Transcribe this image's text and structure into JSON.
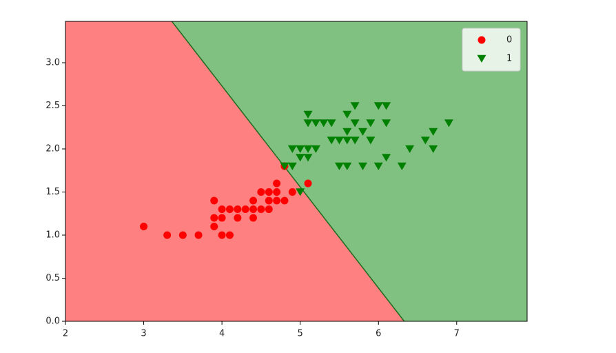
{
  "chart_data": {
    "type": "scatter",
    "xlim": [
      2,
      7.9
    ],
    "ylim": [
      0,
      3.48
    ],
    "xticks": [
      2,
      3,
      4,
      5,
      6,
      7
    ],
    "yticks": [
      {
        "value": 0,
        "label": "0.0"
      },
      {
        "value": 0.5,
        "label": "0.5"
      },
      {
        "value": 1,
        "label": "1.0"
      },
      {
        "value": 1.5,
        "label": "1.5"
      },
      {
        "value": 2,
        "label": "2.0"
      },
      {
        "value": 2.5,
        "label": "2.5"
      },
      {
        "value": 3,
        "label": "3.0"
      }
    ],
    "legend": "upper right",
    "regions": {
      "left_color": "#ff8080",
      "right_color": "#80c080",
      "boundary_color": "#1f6b1f"
    },
    "boundary": {
      "x": [
        3.36,
        6.33
      ],
      "y": [
        3.48,
        0
      ]
    },
    "series": [
      {
        "name": "0",
        "color": "#ff0000",
        "marker": "circle",
        "x": [
          3.0,
          3.3,
          3.5,
          3.7,
          3.9,
          3.9,
          3.9,
          4.0,
          4.0,
          4.0,
          4.1,
          4.1,
          4.2,
          4.2,
          4.3,
          4.4,
          4.4,
          4.4,
          4.5,
          4.5,
          4.6,
          4.6,
          4.6,
          4.7,
          4.7,
          4.7,
          4.8,
          4.8,
          4.9,
          5.1
        ],
        "values": [
          1.1,
          1.0,
          1.0,
          1.0,
          1.4,
          1.2,
          1.1,
          1.3,
          1.2,
          1.0,
          1.3,
          1.0,
          1.3,
          1.2,
          1.3,
          1.4,
          1.3,
          1.2,
          1.5,
          1.3,
          1.5,
          1.4,
          1.3,
          1.6,
          1.5,
          1.4,
          1.8,
          1.4,
          1.5,
          1.6
        ]
      },
      {
        "name": "1",
        "color": "#008000",
        "marker": "triangle-down",
        "x": [
          5.1,
          5.1,
          5.2,
          5.3,
          5.4,
          5.6,
          5.7,
          5.7,
          5.8,
          5.9,
          6.0,
          6.1,
          6.1,
          6.9,
          6.7,
          5.6,
          5.4,
          5.5,
          5.6,
          5.7,
          5.9,
          6.6,
          6.4,
          6.7,
          4.9,
          5.0,
          5.1,
          5.2,
          5.0,
          5.1,
          6.1,
          4.8,
          4.9,
          5.5,
          5.6,
          5.8,
          6.0,
          6.3,
          5.0
        ],
        "values": [
          2.4,
          2.3,
          2.3,
          2.3,
          2.3,
          2.4,
          2.5,
          2.3,
          2.2,
          2.3,
          2.5,
          2.5,
          2.3,
          2.3,
          2.2,
          2.2,
          2.1,
          2.1,
          2.1,
          2.1,
          2.1,
          2.1,
          2.0,
          2.0,
          2.0,
          2.0,
          2.0,
          2.0,
          1.9,
          1.9,
          1.9,
          1.8,
          1.8,
          1.8,
          1.8,
          1.8,
          1.8,
          1.8,
          1.5
        ]
      }
    ]
  }
}
